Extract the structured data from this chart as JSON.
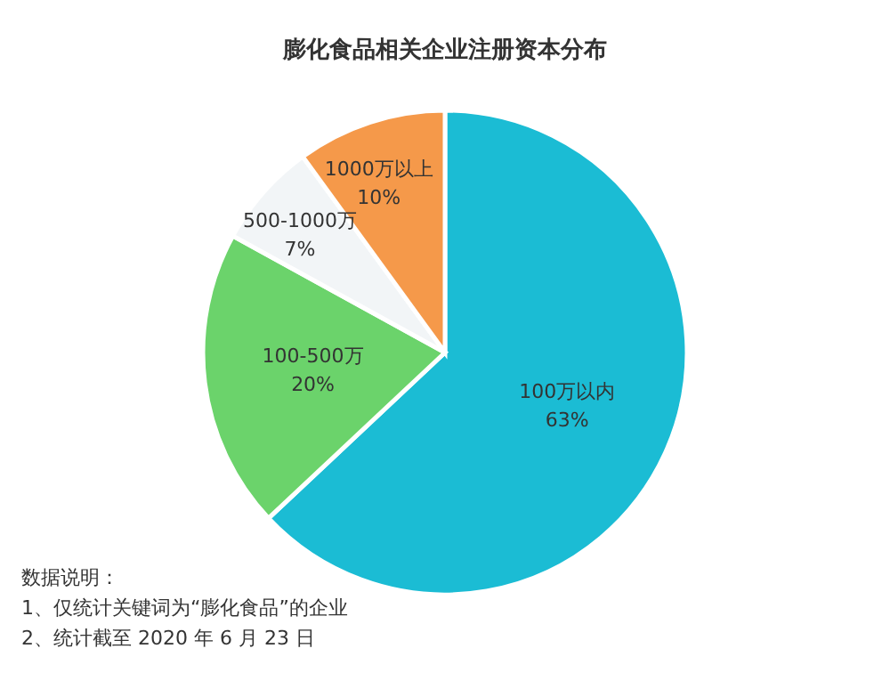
{
  "chart_data": {
    "type": "pie",
    "title": "膨化食品相关企业注册资本分布",
    "categories": [
      "100万以内",
      "100-500万",
      "500-1000万",
      "1000万以上"
    ],
    "values": [
      63,
      20,
      7,
      10
    ],
    "colors": [
      "#1bbcd4",
      "#6bd36b",
      "#f2f5f7",
      "#f5994a"
    ],
    "value_labels": [
      "63%",
      "20%",
      "7%",
      "10%"
    ],
    "annotations": [
      "数据说明：",
      "1、仅统计关键词为“膨化食品”的企业",
      "2、统计截至 2020 年 6 月 23 日"
    ]
  }
}
